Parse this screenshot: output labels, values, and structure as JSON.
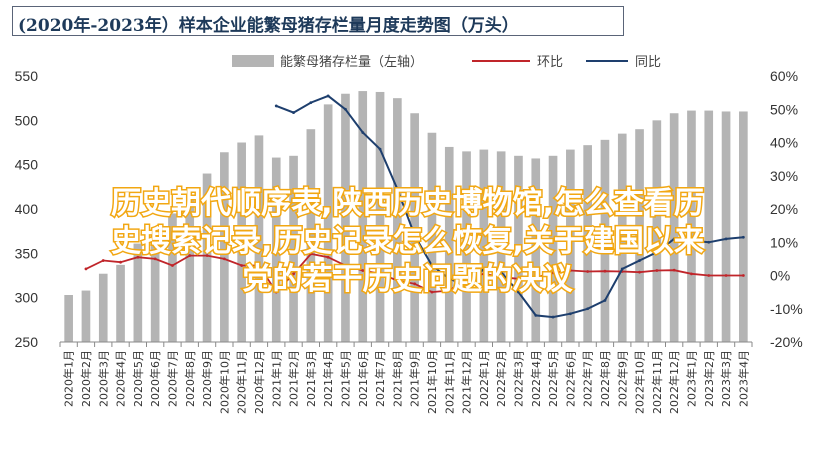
{
  "title": "(2020年-2023年）样本企业能繁母猪存栏量月度走势图（万头）",
  "overlay": {
    "line1": "历史朝代顺序表,陕西历史博物馆,怎么查看历",
    "line2": "史搜索记录,历史记录怎么恢复,关于建国以来",
    "line3": "党的若干历史问题的决议"
  },
  "chart_data": {
    "type": "bar",
    "categories": [
      "2020年1月",
      "2020年2月",
      "2020年3月",
      "2020年4月",
      "2020年5月",
      "2020年6月",
      "2020年7月",
      "2020年8月",
      "2020年9月",
      "2020年10月",
      "2020年11月",
      "2020年12月",
      "2021年1月",
      "2021年2月",
      "2021年3月",
      "2021年4月",
      "2021年5月",
      "2021年6月",
      "2021年7月",
      "2021年8月",
      "2021年9月",
      "2021年10月",
      "2021年11月",
      "2021年12月",
      "2022年1月",
      "2022年2月",
      "2022年3月",
      "2022年4月",
      "2022年5月",
      "2022年6月",
      "2022年7月",
      "2022年8月",
      "2022年9月",
      "2022年10月",
      "2022年11月",
      "2022年12月",
      "2023年1月",
      "2023年2月",
      "2023年3月",
      "2023年4月"
    ],
    "series": [
      {
        "name": "能繁母猪存栏量（左轴）",
        "type": "bar",
        "axis": "left",
        "color": "#b4b4b4",
        "values": [
          303,
          308,
          327,
          337,
          361,
          374,
          395,
          410,
          440,
          464,
          475,
          483,
          458,
          460,
          490,
          518,
          530,
          533,
          532,
          525,
          508,
          486,
          470,
          465,
          467,
          465,
          460,
          457,
          460,
          467,
          472,
          478,
          485,
          490,
          500,
          508,
          511,
          511,
          510,
          510
        ]
      },
      {
        "name": "环比",
        "type": "line",
        "axis": "right",
        "color": "#c0252a",
        "values": [
          null,
          2,
          4.5,
          4,
          5.5,
          5,
          3,
          6,
          6,
          5,
          3,
          3,
          -5,
          0.5,
          6.5,
          5.5,
          3,
          1.5,
          0.5,
          -1.5,
          -2.5,
          -5,
          -4.5,
          -1,
          0.5,
          -0.5,
          -1,
          -0.6,
          0.8,
          1.5,
          1.2,
          1.3,
          1.2,
          1,
          1.5,
          1.6,
          0.5,
          0,
          0,
          0
        ]
      },
      {
        "name": "同比",
        "type": "line",
        "axis": "right",
        "color": "#1e3f6e",
        "values": [
          null,
          null,
          null,
          null,
          null,
          null,
          null,
          null,
          null,
          null,
          null,
          null,
          51,
          49,
          52,
          54,
          50,
          43,
          38,
          26,
          12,
          3,
          -1,
          -3,
          2,
          1,
          -5,
          -12,
          -12.5,
          -11.5,
          -10,
          -7.5,
          2,
          4.5,
          7,
          11,
          10.5,
          10,
          11,
          11.5
        ]
      }
    ],
    "ylim_left": [
      250,
      550
    ],
    "yticks_left": [
      "250",
      "300",
      "350",
      "400",
      "450",
      "500",
      "550"
    ],
    "ylim_right": [
      -20,
      60
    ],
    "yticks_right": [
      "-20%",
      "-10%",
      "0%",
      "10%",
      "20%",
      "30%",
      "40%",
      "50%",
      "60%"
    ],
    "legend": [
      "能繁母猪存栏量（左轴）",
      "环比",
      "同比"
    ],
    "legend_position": "top"
  }
}
